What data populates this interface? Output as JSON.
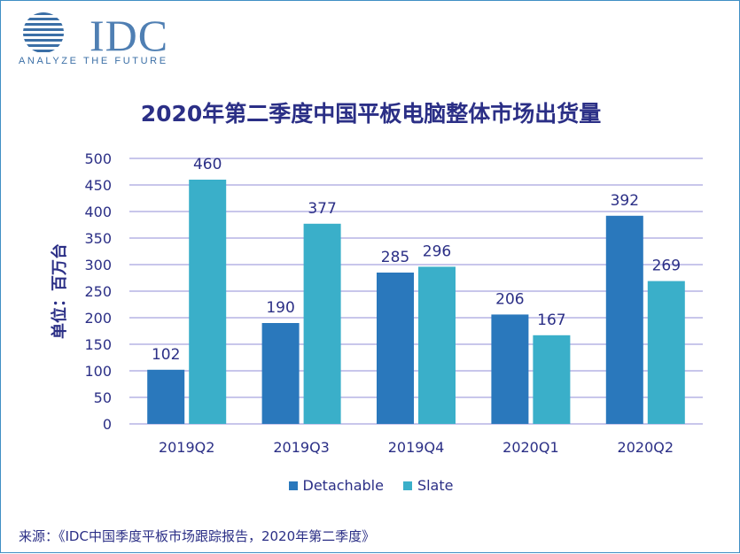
{
  "logo": {
    "name": "IDC",
    "tagline": "ANALYZE THE FUTURE"
  },
  "chart_data": {
    "type": "bar",
    "title": "2020年第二季度中国平板电脑整体市场出货量",
    "ylabel": "单位：百万台",
    "xlabel": "",
    "categories": [
      "2019Q2",
      "2019Q3",
      "2019Q4",
      "2020Q1",
      "2020Q2"
    ],
    "series": [
      {
        "name": "Detachable",
        "values": [
          102,
          190,
          285,
          206,
          392
        ],
        "color": "#2a78bc"
      },
      {
        "name": "Slate",
        "values": [
          460,
          377,
          296,
          167,
          269
        ],
        "color": "#3aafc9"
      }
    ],
    "ylim": [
      0,
      500
    ],
    "yticks": [
      0,
      50,
      100,
      150,
      200,
      250,
      300,
      350,
      400,
      450,
      500
    ],
    "grid": true,
    "legend_position": "bottom",
    "gridline_color": "#a7a3df",
    "text_color": "#2b2f86"
  },
  "source": "来源：《IDC中国季度平板市场跟踪报告，2020年第二季度》"
}
